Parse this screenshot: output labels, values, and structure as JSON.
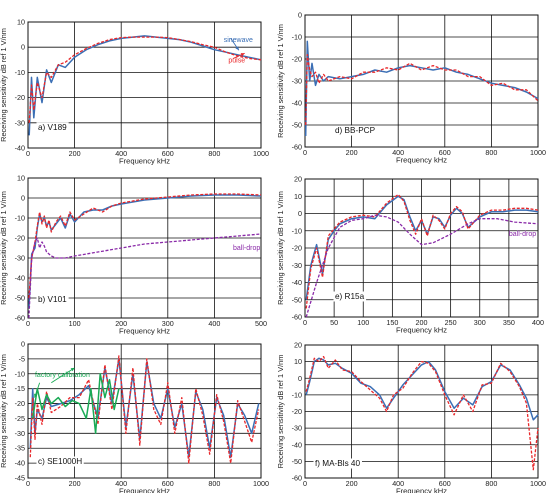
{
  "colors": {
    "sinewave": "#3b6fb5",
    "pulse": "#e8272a",
    "balldrop": "#8a2aa8",
    "factory": "#1aaa55"
  },
  "chart_data": [
    {
      "type": "line",
      "label": "a) V189",
      "xlabel": "Frequency  kHz",
      "ylabel": "Receiving sensitivity  dB ref 1 V/nm",
      "xlim": [
        0,
        1000
      ],
      "ylim": [
        -40,
        10
      ],
      "xticks": [
        0,
        200,
        400,
        600,
        800,
        1000
      ],
      "yticks": [
        10,
        0,
        -10,
        -20,
        -30,
        -40
      ],
      "annotations": [
        {
          "text": "sinewave",
          "color": "#3b6fb5",
          "x": 840,
          "y": 2
        },
        {
          "text": "pulse",
          "color": "#e8272a",
          "x": 860,
          "y": -6
        }
      ],
      "series": [
        {
          "name": "sinewave",
          "style": "solid",
          "color": "#3b6fb5",
          "x": [
            5,
            15,
            25,
            40,
            60,
            80,
            100,
            130,
            160,
            200,
            250,
            300,
            350,
            400,
            450,
            500,
            550,
            600,
            650,
            700,
            750,
            800,
            850,
            900,
            950,
            1000
          ],
          "y": [
            -35,
            -12,
            -28,
            -12,
            -22,
            -9,
            -14,
            -7,
            -8,
            -4,
            -1,
            1,
            2.5,
            3.5,
            4,
            4.5,
            4,
            3.5,
            3,
            2,
            0.5,
            -1,
            -2,
            -3,
            -4,
            -5
          ]
        },
        {
          "name": "pulse",
          "style": "dashed",
          "color": "#e8272a",
          "x": [
            5,
            15,
            25,
            40,
            60,
            80,
            100,
            130,
            160,
            200,
            250,
            300,
            350,
            400,
            450,
            500,
            550,
            600,
            650,
            700,
            750,
            800,
            850,
            900,
            950,
            1000
          ],
          "y": [
            -30,
            -15,
            -25,
            -14,
            -20,
            -10,
            -12,
            -7,
            -6,
            -3,
            -0.5,
            1.5,
            3,
            3.8,
            4,
            4,
            4,
            3.8,
            3,
            2.2,
            1,
            0,
            -2,
            -3.5,
            -4.5,
            -5
          ]
        }
      ]
    },
    {
      "type": "line",
      "label": "b) V101",
      "xlabel": "Frequency  kHz",
      "ylabel": "Receiving sensitivity  dB ref 1 V/nm",
      "xlim": [
        0,
        500
      ],
      "ylim": [
        -60,
        10
      ],
      "xticks": [
        0,
        100,
        200,
        300,
        400,
        500
      ],
      "yticks": [
        10,
        0,
        -10,
        -20,
        -30,
        -40,
        -50,
        -60
      ],
      "annotations": [
        {
          "text": "ball-drop",
          "color": "#8a2aa8",
          "x": 440,
          "y": -26
        }
      ],
      "series": [
        {
          "name": "sinewave",
          "style": "solid",
          "color": "#3b6fb5",
          "x": [
            2,
            8,
            15,
            20,
            25,
            30,
            35,
            40,
            45,
            50,
            60,
            70,
            80,
            90,
            100,
            120,
            140,
            160,
            180,
            200,
            250,
            300,
            350,
            400,
            450,
            500
          ],
          "y": [
            -55,
            -28,
            -25,
            -15,
            -8,
            -12,
            -10,
            -14,
            -12,
            -16,
            -13,
            -10,
            -15,
            -8,
            -12,
            -7,
            -6,
            -6,
            -4,
            -3,
            -1,
            0,
            1,
            1.5,
            1.5,
            1
          ]
        },
        {
          "name": "pulse",
          "style": "dashed",
          "color": "#e8272a",
          "x": [
            2,
            8,
            15,
            20,
            25,
            30,
            35,
            40,
            45,
            50,
            60,
            70,
            80,
            90,
            100,
            120,
            140,
            160,
            180,
            200,
            250,
            300,
            350,
            400,
            450,
            500
          ],
          "y": [
            -50,
            -30,
            -22,
            -14,
            -7,
            -13,
            -9,
            -15,
            -11,
            -17,
            -12,
            -9,
            -14,
            -7,
            -11,
            -8,
            -5,
            -7,
            -4,
            -2.5,
            -0.5,
            0.5,
            1.5,
            2,
            2,
            1.5
          ]
        },
        {
          "name": "ball-drop",
          "style": "dashed",
          "color": "#8a2aa8",
          "x": [
            2,
            8,
            15,
            20,
            25,
            30,
            35,
            40,
            50,
            60,
            80,
            100,
            150,
            200,
            250,
            300,
            350,
            400,
            450,
            500
          ],
          "y": [
            -60,
            -30,
            -22,
            -20,
            -25,
            -22,
            -24,
            -27,
            -29,
            -30,
            -30,
            -29,
            -27,
            -25,
            -23,
            -22,
            -21,
            -20,
            -19,
            -18
          ]
        }
      ]
    },
    {
      "type": "line",
      "label": "c) SE1000H",
      "xlabel": "Frequency  kHz",
      "ylabel": "Receiving sensitivity  dB ref 1 V/nm",
      "xlim": [
        0,
        1000
      ],
      "ylim": [
        -45,
        0
      ],
      "xticks": [
        0,
        200,
        400,
        600,
        800,
        1000
      ],
      "yticks": [
        0,
        -5,
        -10,
        -15,
        -20,
        -25,
        -30,
        -35,
        -40,
        -45
      ],
      "annotations": [
        {
          "text": "factory calibration",
          "color": "#1aaa55",
          "x": 30,
          "y": -11
        }
      ],
      "series": [
        {
          "name": "sinewave",
          "style": "solid",
          "color": "#3b6fb5",
          "x": [
            10,
            20,
            30,
            40,
            60,
            80,
            100,
            140,
            180,
            220,
            260,
            300,
            330,
            360,
            390,
            420,
            450,
            480,
            510,
            540,
            570,
            600,
            630,
            660,
            690,
            720,
            750,
            780,
            810,
            840,
            870,
            900,
            930,
            960,
            990
          ],
          "y": [
            -35,
            -15,
            -30,
            -22,
            -25,
            -18,
            -21,
            -20,
            -19,
            -17,
            -14,
            -25,
            -8,
            -20,
            -5,
            -28,
            -10,
            -32,
            -6,
            -20,
            -25,
            -15,
            -28,
            -20,
            -38,
            -16,
            -22,
            -35,
            -18,
            -24,
            -38,
            -20,
            -24,
            -30,
            -20
          ]
        },
        {
          "name": "pulse",
          "style": "dashed",
          "color": "#e8272a",
          "x": [
            10,
            20,
            30,
            40,
            60,
            80,
            100,
            140,
            180,
            220,
            260,
            300,
            330,
            360,
            390,
            420,
            450,
            480,
            510,
            540,
            570,
            600,
            630,
            660,
            690,
            720,
            750,
            780,
            810,
            840,
            870,
            900,
            930,
            960,
            990
          ],
          "y": [
            -38,
            -18,
            -32,
            -20,
            -27,
            -16,
            -23,
            -21,
            -18,
            -18,
            -12,
            -27,
            -7,
            -22,
            -4,
            -30,
            -8,
            -34,
            -5,
            -22,
            -27,
            -13,
            -30,
            -18,
            -40,
            -15,
            -24,
            -37,
            -17,
            -26,
            -40,
            -19,
            -26,
            -33,
            -22
          ]
        },
        {
          "name": "factory calibration",
          "style": "solid",
          "color": "#1aaa55",
          "x": [
            20,
            40,
            60,
            80,
            100,
            130,
            160,
            190,
            220,
            250,
            270,
            290,
            310,
            330,
            350,
            370,
            390
          ],
          "y": [
            -25,
            -15,
            -22,
            -17,
            -20,
            -18,
            -21,
            -19,
            -20,
            -25,
            -15,
            -30,
            -10,
            -18,
            -12,
            -22,
            -15
          ]
        }
      ]
    },
    {
      "type": "line",
      "label": "d) BB-PCP",
      "xlabel": "Frequency  kHz",
      "ylabel": "Receiving sensitivity  dB ref 1 V/nm",
      "xlim": [
        0,
        1000
      ],
      "ylim": [
        -60,
        0
      ],
      "xticks": [
        0,
        200,
        400,
        600,
        800,
        1000
      ],
      "yticks": [
        0,
        -10,
        -20,
        -30,
        -40,
        -50,
        -60
      ],
      "annotations": [],
      "series": [
        {
          "name": "sinewave",
          "style": "solid",
          "color": "#3b6fb5",
          "x": [
            3,
            10,
            20,
            30,
            45,
            60,
            80,
            100,
            150,
            200,
            250,
            300,
            350,
            400,
            450,
            500,
            550,
            600,
            650,
            700,
            750,
            800,
            850,
            900,
            950,
            1000
          ],
          "y": [
            -55,
            -12,
            -30,
            -22,
            -32,
            -27,
            -30,
            -28,
            -29,
            -28,
            -27,
            -25,
            -26,
            -24,
            -23,
            -24,
            -25,
            -24,
            -26,
            -27,
            -29,
            -31,
            -32,
            -33,
            -35,
            -38
          ]
        },
        {
          "name": "pulse",
          "style": "dashed",
          "color": "#e8272a",
          "x": [
            3,
            10,
            20,
            30,
            45,
            60,
            80,
            100,
            150,
            200,
            250,
            300,
            350,
            400,
            450,
            500,
            550,
            600,
            650,
            700,
            750,
            800,
            850,
            900,
            950,
            1000
          ],
          "y": [
            -50,
            -18,
            -25,
            -28,
            -26,
            -31,
            -27,
            -30,
            -28,
            -29,
            -26,
            -26,
            -24,
            -25,
            -22,
            -25,
            -23,
            -25,
            -25,
            -28,
            -28,
            -32,
            -31,
            -34,
            -34,
            -39
          ]
        }
      ]
    },
    {
      "type": "line",
      "label": "e) R15a",
      "xlabel": "Frequency  kHz",
      "ylabel": "Receiving sensitivity  dB ref 1 V/nm",
      "xlim": [
        0,
        400
      ],
      "ylim": [
        -60,
        20
      ],
      "xticks": [
        0,
        50,
        100,
        150,
        200,
        250,
        300,
        350,
        400
      ],
      "yticks": [
        20,
        10,
        0,
        -10,
        -20,
        -30,
        -40,
        -50,
        -60
      ],
      "annotations": [
        {
          "text": "ball-drop",
          "color": "#8a2aa8",
          "x": 350,
          "y": -13
        }
      ],
      "series": [
        {
          "name": "sinewave",
          "style": "solid",
          "color": "#3b6fb5",
          "x": [
            2,
            10,
            20,
            30,
            40,
            50,
            60,
            80,
            100,
            120,
            140,
            160,
            170,
            180,
            190,
            200,
            210,
            220,
            230,
            240,
            250,
            260,
            270,
            280,
            300,
            320,
            340,
            360,
            380,
            400
          ],
          "y": [
            -50,
            -30,
            -18,
            -35,
            -15,
            -10,
            -6,
            -3,
            -2,
            -3,
            5,
            10,
            8,
            -2,
            -10,
            -4,
            -12,
            -2,
            -3,
            -8,
            -1,
            3,
            0,
            -8,
            -2,
            1,
            1,
            2,
            2,
            1
          ]
        },
        {
          "name": "pulse",
          "style": "dashed",
          "color": "#e8272a",
          "x": [
            2,
            10,
            20,
            30,
            40,
            50,
            60,
            80,
            100,
            120,
            140,
            160,
            170,
            180,
            190,
            200,
            210,
            220,
            230,
            240,
            250,
            260,
            270,
            280,
            300,
            320,
            340,
            360,
            380,
            400
          ],
          "y": [
            -55,
            -32,
            -20,
            -37,
            -13,
            -9,
            -5,
            -2,
            -1,
            -2,
            6,
            11,
            7,
            -4,
            -12,
            -3,
            -13,
            -1,
            -4,
            -9,
            0,
            4,
            1,
            -9,
            -1,
            2,
            2,
            3,
            3,
            2
          ]
        },
        {
          "name": "ball-drop",
          "style": "dashed",
          "color": "#8a2aa8",
          "x": [
            2,
            20,
            40,
            60,
            80,
            100,
            120,
            140,
            160,
            180,
            200,
            220,
            250,
            280,
            300,
            330,
            360,
            400
          ],
          "y": [
            -60,
            -40,
            -20,
            -8,
            -4,
            -3,
            -1,
            -2,
            -5,
            -12,
            -18,
            -17,
            -12,
            -6,
            -3,
            -3,
            -5,
            -6
          ]
        }
      ]
    },
    {
      "type": "line",
      "label": "f) MA-Bls 40",
      "xlabel": "Frequency  kHz",
      "ylabel": "Receiving sensitivity  dB ref 1 V/nm",
      "xlim": [
        0,
        1000
      ],
      "ylim": [
        -60,
        20
      ],
      "xticks": [
        0,
        200,
        400,
        600,
        800,
        1000
      ],
      "yticks": [
        20,
        10,
        0,
        -10,
        -20,
        -30,
        -40,
        -50,
        -60
      ],
      "annotations": [],
      "series": [
        {
          "name": "sinewave",
          "style": "solid",
          "color": "#3b6fb5",
          "x": [
            5,
            20,
            40,
            60,
            80,
            100,
            130,
            160,
            200,
            240,
            280,
            320,
            350,
            380,
            420,
            460,
            500,
            530,
            560,
            600,
            640,
            680,
            720,
            760,
            800,
            840,
            880,
            920,
            950,
            980,
            1000
          ],
          "y": [
            -10,
            -2,
            10,
            12,
            11,
            8,
            9,
            6,
            3,
            -3,
            -5,
            -10,
            -18,
            -12,
            -4,
            2,
            8,
            10,
            5,
            -8,
            -18,
            -12,
            -16,
            -5,
            -2,
            8,
            5,
            -4,
            -12,
            -25,
            -22
          ]
        },
        {
          "name": "pulse",
          "style": "dashed",
          "color": "#e8272a",
          "x": [
            5,
            20,
            40,
            60,
            80,
            100,
            130,
            160,
            200,
            240,
            280,
            320,
            350,
            380,
            420,
            460,
            500,
            530,
            560,
            600,
            640,
            680,
            720,
            760,
            800,
            840,
            880,
            920,
            950,
            980,
            1000
          ],
          "y": [
            -8,
            0,
            12,
            10,
            13,
            6,
            11,
            5,
            4,
            -2,
            -7,
            -12,
            -20,
            -10,
            -6,
            3,
            10,
            9,
            4,
            -10,
            -22,
            -10,
            -20,
            -4,
            -3,
            9,
            4,
            -5,
            -15,
            -55,
            -30
          ]
        }
      ]
    }
  ]
}
